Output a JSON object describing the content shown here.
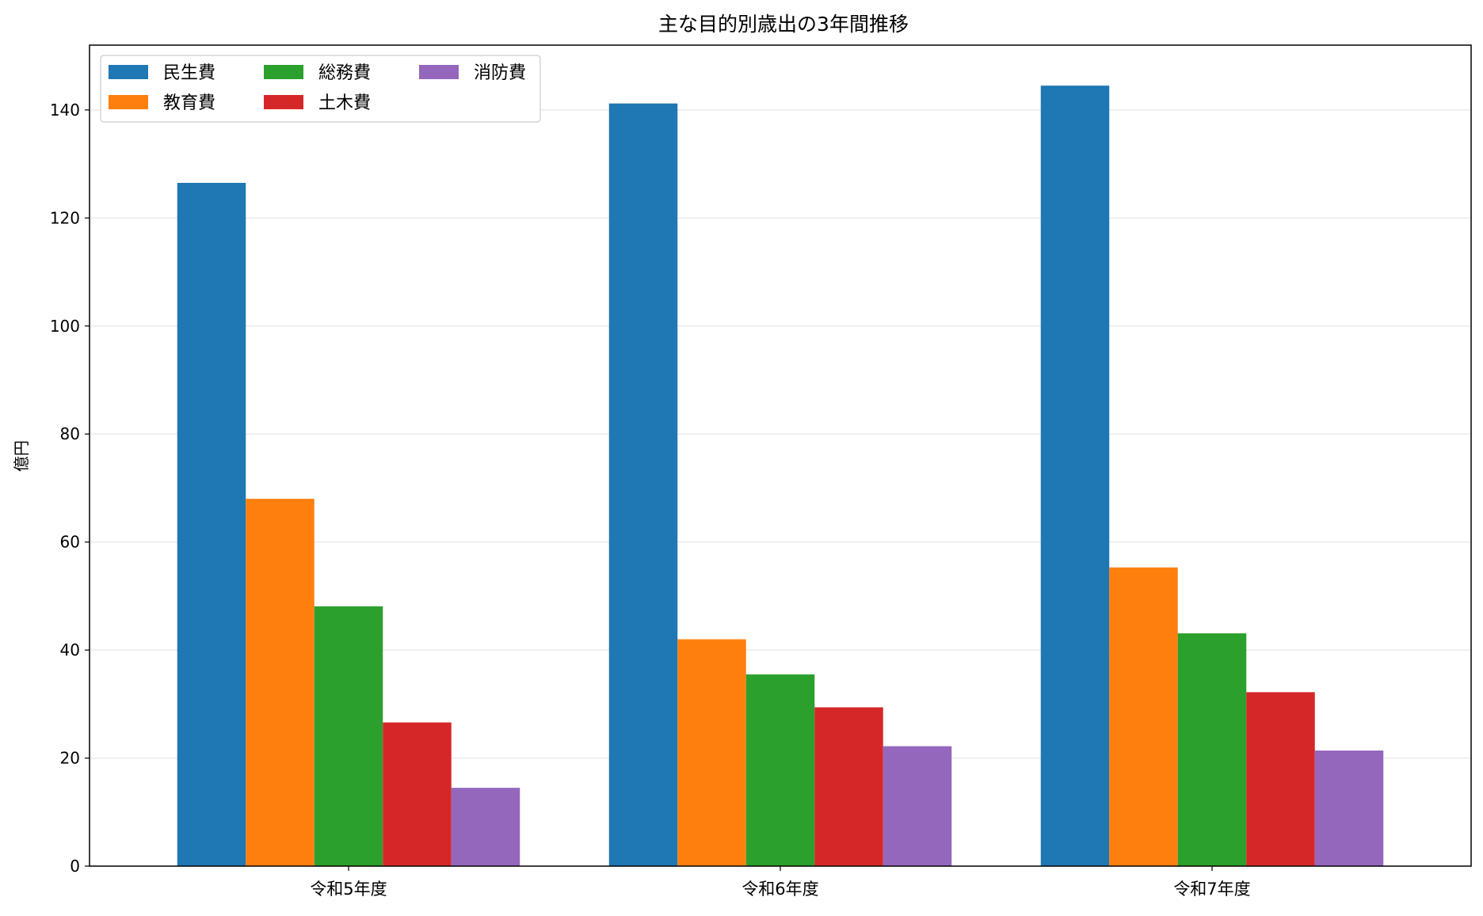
{
  "chart_data": {
    "type": "bar",
    "title": "主な目的別歳出の3年間推移",
    "xlabel": "",
    "ylabel": "億円",
    "ylim": [
      0,
      152
    ],
    "yticks": [
      0,
      20,
      40,
      60,
      80,
      100,
      120,
      140
    ],
    "grid": "y",
    "legend_position": "top-left",
    "legend_columns": 3,
    "categories": [
      "令和5年度",
      "令和6年度",
      "令和7年度"
    ],
    "series": [
      {
        "name": "民生費",
        "color": "#1f77b4",
        "values": [
          126.5,
          141.2,
          144.5
        ]
      },
      {
        "name": "教育費",
        "color": "#ff7f0e",
        "values": [
          68.0,
          42.0,
          55.3
        ]
      },
      {
        "name": "総務費",
        "color": "#2ca02c",
        "values": [
          48.1,
          35.5,
          43.1
        ]
      },
      {
        "name": "土木費",
        "color": "#d62728",
        "values": [
          26.6,
          29.4,
          32.2
        ]
      },
      {
        "name": "消防費",
        "color": "#9467bd",
        "values": [
          14.5,
          22.2,
          21.4
        ]
      }
    ]
  }
}
